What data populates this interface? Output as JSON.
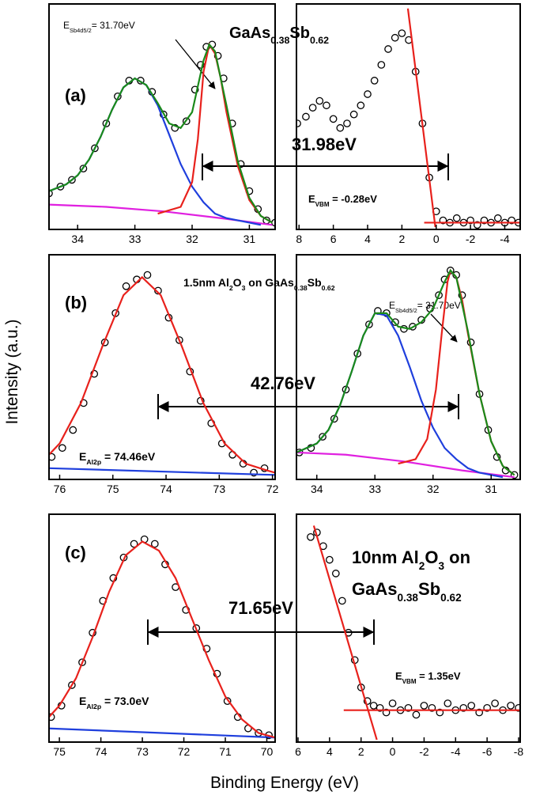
{
  "ylabel": "Intensity (a.u.)",
  "xlabel": "Binding Energy (eV)",
  "panel_text": [
    {
      "label": "(a)",
      "title": [
        [
          {
            "text": "GaAs"
          },
          {
            "text": "0.38",
            "sub": true
          },
          {
            "text": "Sb"
          },
          {
            "text": "0.62",
            "sub": true
          }
        ]
      ],
      "separation": "31.98eV",
      "notes": [
        [
          {
            "text": "E"
          },
          {
            "text": "Sb4d5/2",
            "sub": true
          },
          {
            "text": "= 31.70eV"
          }
        ],
        [
          {
            "text": "E"
          },
          {
            "text": "VBM",
            "sub": true
          },
          {
            "text": " = -0.28eV"
          }
        ]
      ]
    },
    {
      "label": "(b)",
      "title": [
        [
          {
            "text": "1.5nm Al"
          },
          {
            "text": "2",
            "sub": true
          },
          {
            "text": "O"
          },
          {
            "text": "3",
            "sub": true
          },
          {
            "text": " on GaAs"
          },
          {
            "text": "0.38",
            "sub": true
          },
          {
            "text": "Sb"
          },
          {
            "text": "0.62",
            "sub": true
          }
        ]
      ],
      "separation": "42.76eV",
      "notes": [
        [
          {
            "text": "E"
          },
          {
            "text": "Al2p",
            "sub": true
          },
          {
            "text": " = 74.46eV"
          }
        ],
        [
          {
            "text": "E"
          },
          {
            "text": "Sb4d5/2",
            "sub": true
          },
          {
            "text": "= 31.70eV"
          }
        ]
      ]
    },
    {
      "label": "(c)",
      "title": [
        [
          {
            "text": "10nm Al"
          },
          {
            "text": "2",
            "sub": true
          },
          {
            "text": "O"
          },
          {
            "text": "3",
            "sub": true
          },
          {
            "text": " on"
          }
        ],
        [
          {
            "text": "GaAs"
          },
          {
            "text": "0.38",
            "sub": true
          },
          {
            "text": "Sb"
          },
          {
            "text": "0.62",
            "sub": true
          }
        ]
      ],
      "separation": "71.65eV",
      "notes": [
        [
          {
            "text": "E"
          },
          {
            "text": "Al2p",
            "sub": true
          },
          {
            "text": " = 73.0eV"
          }
        ],
        [
          {
            "text": "E"
          },
          {
            "text": "VBM",
            "sub": true
          },
          {
            "text": " = 1.35eV"
          }
        ]
      ]
    }
  ],
  "chart_data": [
    {
      "type": "line",
      "xlim": [
        34.5,
        30.55
      ],
      "xticks": [
        34,
        33,
        32,
        31
      ],
      "ylim": [
        0,
        100
      ],
      "series": [
        {
          "style": "markers",
          "color": "#000000",
          "x": [
            34.5,
            34.3,
            34.1,
            33.9,
            33.7,
            33.5,
            33.3,
            33.1,
            32.9,
            32.7,
            32.5,
            32.3,
            32.1,
            31.95,
            31.85,
            31.75,
            31.65,
            31.55,
            31.45,
            31.3,
            31.15,
            31.0,
            30.85,
            30.7,
            30.55
          ],
          "values": [
            16,
            19,
            22,
            27,
            36,
            47,
            59,
            66,
            66,
            61,
            51,
            45,
            48,
            62,
            73,
            81,
            82,
            77,
            67,
            47,
            29,
            17,
            9,
            4,
            3
          ]
        },
        {
          "style": "line",
          "color": "#e020e0",
          "x": [
            34.5,
            33.5,
            32.5,
            31.5,
            30.6
          ],
          "values": [
            11,
            10,
            8,
            5,
            2
          ]
        },
        {
          "style": "line",
          "color": "#1f3fdd",
          "x": [
            34.5,
            34.2,
            34.0,
            33.8,
            33.6,
            33.4,
            33.2,
            33.0,
            32.8,
            32.6,
            32.4,
            32.2,
            32.0,
            31.8,
            31.6,
            31.4,
            31.2,
            31.0,
            30.8
          ],
          "values": [
            17,
            20,
            24,
            31,
            41,
            53,
            63,
            67,
            64,
            55,
            42,
            29,
            19,
            12,
            7,
            5,
            4,
            3,
            2
          ]
        },
        {
          "style": "line",
          "color": "#e8211c",
          "x": [
            32.6,
            32.2,
            32.0,
            31.9,
            31.8,
            31.7,
            31.6,
            31.5,
            31.4,
            31.2,
            31.0,
            30.8,
            30.6
          ],
          "values": [
            7,
            10,
            21,
            40,
            70,
            82,
            78,
            67,
            52,
            28,
            13,
            6,
            3
          ]
        },
        {
          "style": "line",
          "color": "#1a8a1a",
          "x": [
            34.5,
            34.2,
            34.0,
            33.8,
            33.6,
            33.4,
            33.2,
            33.0,
            32.8,
            32.6,
            32.4,
            32.2,
            32.0,
            31.8,
            31.7,
            31.6,
            31.4,
            31.2,
            31.0,
            30.8,
            30.6
          ],
          "values": [
            17,
            20,
            24,
            31,
            41,
            53,
            63,
            67,
            64,
            56,
            47,
            45,
            52,
            75,
            82,
            79,
            55,
            30,
            14,
            6,
            3
          ]
        }
      ]
    },
    {
      "type": "line",
      "xlim": [
        8.15,
        -4.9
      ],
      "xticks": [
        8,
        6,
        4,
        2,
        0,
        -2,
        -4
      ],
      "ylim": [
        0,
        100
      ],
      "series": [
        {
          "style": "markers",
          "color": "#000000",
          "x": [
            8.1,
            7.6,
            7.2,
            6.8,
            6.4,
            6.0,
            5.6,
            5.2,
            4.8,
            4.4,
            4.0,
            3.6,
            3.2,
            2.8,
            2.4,
            2.0,
            1.6,
            1.2,
            0.8,
            0.4,
            0.0,
            -0.4,
            -0.8,
            -1.2,
            -1.6,
            -2.0,
            -2.4,
            -2.8,
            -3.2,
            -3.6,
            -4.0,
            -4.4,
            -4.8
          ],
          "values": [
            47,
            50,
            54,
            57,
            55,
            49,
            45,
            47,
            51,
            55,
            60,
            66,
            73,
            80,
            85,
            87,
            84,
            70,
            47,
            23,
            8,
            4,
            3,
            5,
            3,
            4,
            2,
            4,
            3,
            5,
            3,
            4,
            3
          ]
        },
        {
          "style": "line",
          "color": "#e8211c",
          "x": [
            1.65,
            0.05
          ],
          "values": [
            98,
            1
          ]
        },
        {
          "style": "line",
          "color": "#e8211c",
          "x": [
            0.7,
            -4.9
          ],
          "values": [
            3,
            3
          ]
        }
      ]
    },
    {
      "type": "line",
      "xlim": [
        76.2,
        71.95
      ],
      "xticks": [
        76,
        75,
        74,
        73,
        72
      ],
      "ylim": [
        0,
        100
      ],
      "series": [
        {
          "style": "markers",
          "color": "#000000",
          "x": [
            76.15,
            75.95,
            75.75,
            75.55,
            75.35,
            75.15,
            74.95,
            74.75,
            74.55,
            74.35,
            74.15,
            73.95,
            73.75,
            73.55,
            73.35,
            73.15,
            72.95,
            72.75,
            72.55,
            72.35,
            72.15
          ],
          "values": [
            10,
            14,
            22,
            34,
            47,
            61,
            74,
            86,
            89,
            91,
            84,
            72,
            62,
            48,
            35,
            25,
            16,
            11,
            7,
            3,
            5
          ]
        },
        {
          "style": "line",
          "color": "#1f3fdd",
          "x": [
            76.2,
            71.95
          ],
          "values": [
            5,
            2
          ]
        },
        {
          "style": "line",
          "color": "#e8211c",
          "x": [
            76.2,
            76.0,
            75.6,
            75.2,
            74.8,
            74.45,
            74.1,
            73.7,
            73.3,
            72.9,
            72.5,
            72.1,
            71.95
          ],
          "values": [
            11,
            16,
            34,
            59,
            82,
            90,
            82,
            59,
            34,
            16,
            7,
            4,
            3
          ]
        }
      ]
    },
    {
      "type": "line",
      "xlim": [
        34.35,
        30.5
      ],
      "xticks": [
        34,
        33,
        32,
        31
      ],
      "ylim": [
        0,
        100
      ],
      "series": [
        {
          "style": "markers",
          "color": "#000000",
          "x": [
            34.3,
            34.1,
            33.9,
            33.7,
            33.5,
            33.3,
            33.1,
            32.95,
            32.8,
            32.65,
            32.5,
            32.35,
            32.2,
            32.05,
            31.9,
            31.8,
            31.7,
            31.6,
            31.5,
            31.35,
            31.2,
            31.05,
            30.9,
            30.75,
            30.6
          ],
          "values": [
            12,
            14,
            19,
            27,
            40,
            56,
            69,
            75,
            74,
            70,
            67,
            68,
            71,
            76,
            82,
            89,
            93,
            91,
            82,
            61,
            38,
            22,
            10,
            4,
            2
          ]
        },
        {
          "style": "line",
          "color": "#e020e0",
          "x": [
            34.35,
            33.5,
            32.5,
            31.5,
            30.6
          ],
          "values": [
            12,
            11,
            8,
            4,
            1
          ]
        },
        {
          "style": "line",
          "color": "#1f3fdd",
          "x": [
            34.35,
            34.0,
            33.8,
            33.6,
            33.4,
            33.2,
            33.0,
            32.8,
            32.6,
            32.4,
            32.2,
            32.0,
            31.8,
            31.6,
            31.4,
            31.2,
            31.0,
            30.8
          ],
          "values": [
            12,
            16,
            22,
            33,
            48,
            64,
            74,
            73,
            64,
            50,
            35,
            23,
            14,
            9,
            5,
            3,
            2,
            1
          ]
        },
        {
          "style": "line",
          "color": "#e8211c",
          "x": [
            32.6,
            32.3,
            32.1,
            31.95,
            31.85,
            31.75,
            31.7,
            31.6,
            31.5,
            31.4,
            31.2,
            31.0,
            30.8,
            30.6
          ],
          "values": [
            7,
            9,
            18,
            40,
            65,
            88,
            93,
            90,
            80,
            65,
            38,
            17,
            6,
            2
          ]
        },
        {
          "style": "line",
          "color": "#1a8a1a",
          "x": [
            34.35,
            34.0,
            33.8,
            33.6,
            33.4,
            33.2,
            33.0,
            32.8,
            32.6,
            32.4,
            32.2,
            32.0,
            31.8,
            31.7,
            31.6,
            31.4,
            31.2,
            31.0,
            30.8,
            30.6
          ],
          "values": [
            12,
            16,
            22,
            33,
            48,
            64,
            74,
            74,
            68,
            67,
            70,
            76,
            88,
            93,
            90,
            66,
            38,
            17,
            6,
            2
          ]
        }
      ]
    },
    {
      "type": "line",
      "xlim": [
        75.25,
        69.8
      ],
      "xticks": [
        75,
        74,
        73,
        72,
        71,
        70
      ],
      "ylim": [
        0,
        100
      ],
      "series": [
        {
          "style": "markers",
          "color": "#000000",
          "x": [
            75.2,
            74.95,
            74.7,
            74.45,
            74.2,
            73.95,
            73.7,
            73.45,
            73.2,
            72.95,
            72.7,
            72.45,
            72.2,
            71.95,
            71.7,
            71.45,
            71.2,
            70.95,
            70.7,
            70.45,
            70.2,
            69.95
          ],
          "values": [
            11,
            16,
            25,
            35,
            48,
            62,
            72,
            81,
            87,
            89,
            87,
            78,
            68,
            58,
            50,
            41,
            30,
            18,
            11,
            6,
            4,
            3
          ]
        },
        {
          "style": "line",
          "color": "#1f3fdd",
          "x": [
            75.25,
            69.8
          ],
          "values": [
            6,
            2
          ]
        },
        {
          "style": "line",
          "color": "#e8211c",
          "x": [
            75.25,
            75.0,
            74.6,
            74.2,
            73.8,
            73.4,
            73.0,
            72.6,
            72.2,
            71.8,
            71.4,
            71.0,
            70.6,
            70.2,
            69.8
          ],
          "values": [
            11,
            16,
            28,
            46,
            66,
            82,
            88,
            84,
            72,
            54,
            36,
            20,
            10,
            4,
            2
          ]
        }
      ]
    },
    {
      "type": "line",
      "xlim": [
        6.1,
        -8.1
      ],
      "xticks": [
        6,
        4,
        2,
        0,
        -2,
        -4,
        -6,
        -8
      ],
      "ylim": [
        0,
        100
      ],
      "series": [
        {
          "style": "markers",
          "color": "#000000",
          "x": [
            5.2,
            4.8,
            4.4,
            4.0,
            3.6,
            3.2,
            2.8,
            2.4,
            2.0,
            1.6,
            1.2,
            0.8,
            0.4,
            0.0,
            -0.5,
            -1.0,
            -1.5,
            -2.0,
            -2.5,
            -3.0,
            -3.5,
            -4.0,
            -4.5,
            -5.0,
            -5.5,
            -6.0,
            -6.5,
            -7.0,
            -7.5,
            -8.0
          ],
          "values": [
            90,
            92,
            86,
            80,
            74,
            62,
            48,
            36,
            24,
            18,
            16,
            15,
            13,
            17,
            14,
            15,
            12,
            16,
            15,
            13,
            17,
            14,
            15,
            16,
            13,
            15,
            17,
            14,
            16,
            15
          ]
        },
        {
          "style": "line",
          "color": "#e8211c",
          "x": [
            5.0,
            1.0
          ],
          "values": [
            95,
            1
          ]
        },
        {
          "style": "line",
          "color": "#e8211c",
          "x": [
            3.1,
            -8.1
          ],
          "values": [
            14,
            14
          ]
        }
      ]
    }
  ]
}
